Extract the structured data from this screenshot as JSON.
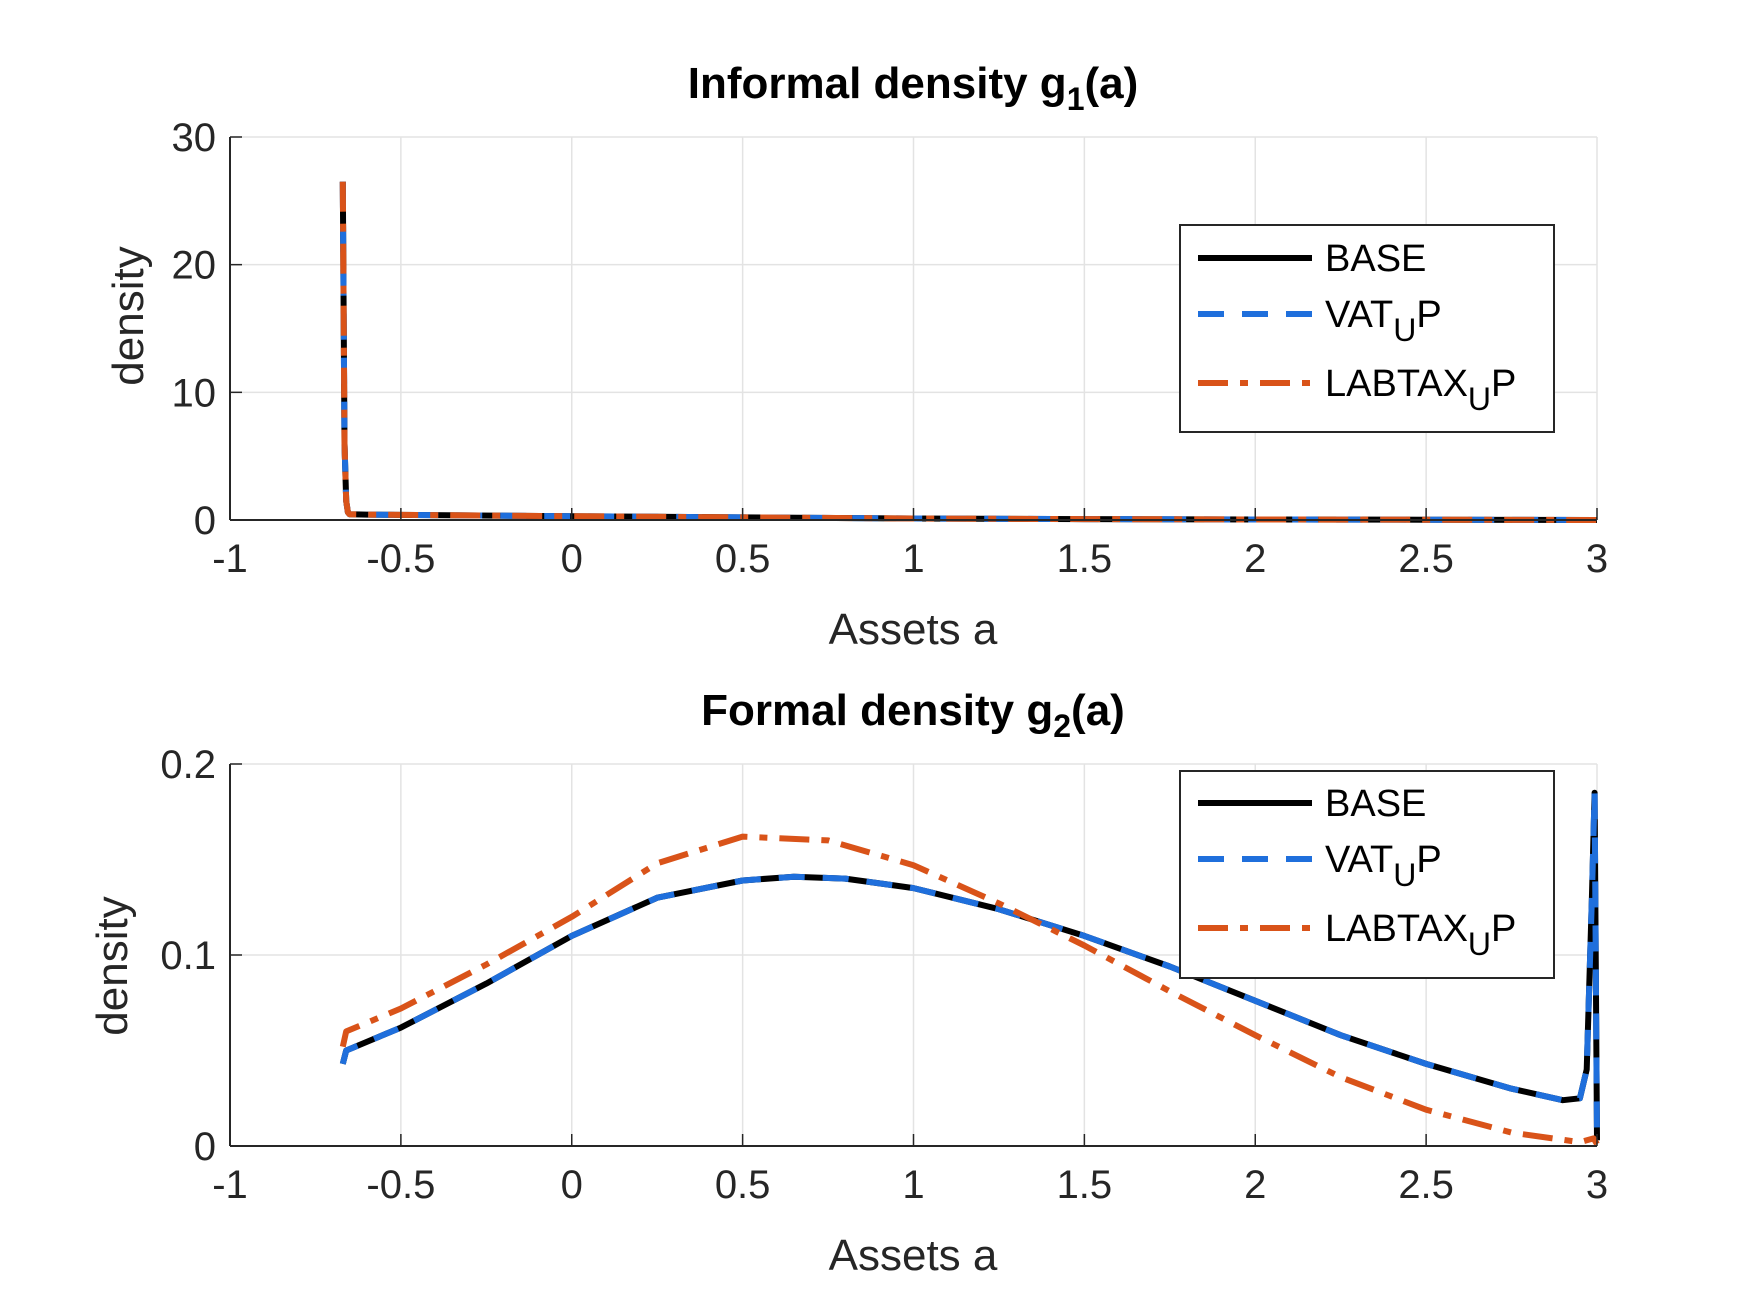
{
  "chart_data": [
    {
      "type": "line",
      "title": "Informal density g",
      "title_sub": "1",
      "title_suffix": "(a)",
      "xlabel": "Assets a",
      "ylabel": "density",
      "xlim": [
        -1,
        3
      ],
      "ylim": [
        0,
        30
      ],
      "xticks": [
        "-1",
        "-0.5",
        "0",
        "0.5",
        "1",
        "1.5",
        "2",
        "2.5",
        "3"
      ],
      "yticks": [
        "0",
        "10",
        "20",
        "30"
      ],
      "grid": true,
      "legend_position": "top-right",
      "series": [
        {
          "name": "BASE",
          "name_main": "BASE",
          "name_sub": "",
          "name_suffix": "",
          "color": "#000000",
          "style": "solid",
          "x": [
            -0.67,
            -0.665,
            -0.66,
            -0.655,
            -0.65,
            -0.6,
            -0.5,
            0,
            0.5,
            1,
            1.5,
            2,
            2.5,
            3
          ],
          "y": [
            26.5,
            6,
            1.5,
            0.6,
            0.45,
            0.42,
            0.4,
            0.3,
            0.2,
            0.12,
            0.07,
            0.04,
            0.02,
            0.0
          ]
        },
        {
          "name": "VATUP",
          "name_main": "VAT",
          "name_sub": "U",
          "name_suffix": "P",
          "color": "#1f6fdc",
          "style": "dashed",
          "x": [
            -0.67,
            -0.665,
            -0.66,
            -0.655,
            -0.65,
            -0.6,
            -0.5,
            0,
            0.5,
            1,
            1.5,
            2,
            2.5,
            3
          ],
          "y": [
            26.5,
            6,
            1.5,
            0.6,
            0.45,
            0.42,
            0.4,
            0.3,
            0.2,
            0.12,
            0.07,
            0.04,
            0.02,
            0.0
          ]
        },
        {
          "name": "LABTAXUP",
          "name_main": "LABTAX",
          "name_sub": "U",
          "name_suffix": "P",
          "color": "#d95319",
          "style": "dashdot",
          "x": [
            -0.67,
            -0.665,
            -0.66,
            -0.655,
            -0.65,
            -0.6,
            -0.5,
            0,
            0.5,
            1,
            1.5,
            2,
            2.5,
            3
          ],
          "y": [
            26.5,
            6,
            1.5,
            0.6,
            0.45,
            0.42,
            0.4,
            0.3,
            0.2,
            0.12,
            0.07,
            0.04,
            0.02,
            0.0
          ]
        }
      ]
    },
    {
      "type": "line",
      "title": "Formal density g",
      "title_sub": "2",
      "title_suffix": "(a)",
      "xlabel": "Assets a",
      "ylabel": "density",
      "xlim": [
        -1,
        3
      ],
      "ylim": [
        0,
        0.2
      ],
      "xticks": [
        "-1",
        "-0.5",
        "0",
        "0.5",
        "1",
        "1.5",
        "2",
        "2.5",
        "3"
      ],
      "yticks": [
        "0",
        "0.1",
        "0.2"
      ],
      "grid": true,
      "legend_position": "top-right",
      "series": [
        {
          "name": "BASE",
          "name_main": "BASE",
          "name_sub": "",
          "name_suffix": "",
          "color": "#000000",
          "style": "solid",
          "x": [
            -0.67,
            -0.66,
            -0.5,
            -0.25,
            0,
            0.25,
            0.5,
            0.65,
            0.8,
            1,
            1.25,
            1.5,
            1.75,
            2,
            2.25,
            2.5,
            2.75,
            2.9,
            2.95,
            2.97,
            2.985,
            2.993,
            3.0
          ],
          "y": [
            0.043,
            0.05,
            0.062,
            0.085,
            0.11,
            0.13,
            0.139,
            0.141,
            0.14,
            0.135,
            0.124,
            0.11,
            0.094,
            0.076,
            0.058,
            0.043,
            0.03,
            0.024,
            0.025,
            0.04,
            0.13,
            0.185,
            0.003
          ]
        },
        {
          "name": "VATUP",
          "name_main": "VAT",
          "name_sub": "U",
          "name_suffix": "P",
          "color": "#1f6fdc",
          "style": "dashed",
          "x": [
            -0.67,
            -0.66,
            -0.5,
            -0.25,
            0,
            0.25,
            0.5,
            0.65,
            0.8,
            1,
            1.25,
            1.5,
            1.75,
            2,
            2.25,
            2.5,
            2.75,
            2.9,
            2.95,
            2.97,
            2.985,
            2.993,
            3.0
          ],
          "y": [
            0.043,
            0.05,
            0.062,
            0.085,
            0.11,
            0.13,
            0.139,
            0.141,
            0.14,
            0.135,
            0.124,
            0.11,
            0.094,
            0.076,
            0.058,
            0.043,
            0.03,
            0.024,
            0.025,
            0.04,
            0.13,
            0.185,
            0.003
          ]
        },
        {
          "name": "LABTAXUP",
          "name_main": "LABTAX",
          "name_sub": "U",
          "name_suffix": "P",
          "color": "#d95319",
          "style": "dashdot",
          "x": [
            -0.67,
            -0.66,
            -0.5,
            -0.25,
            0,
            0.25,
            0.5,
            0.75,
            1,
            1.25,
            1.5,
            1.75,
            2,
            2.25,
            2.5,
            2.75,
            2.95,
            2.99,
            3.0
          ],
          "y": [
            0.052,
            0.06,
            0.072,
            0.095,
            0.12,
            0.148,
            0.162,
            0.16,
            0.147,
            0.127,
            0.105,
            0.081,
            0.058,
            0.036,
            0.019,
            0.007,
            0.002,
            0.004,
            0.001
          ]
        }
      ]
    }
  ]
}
